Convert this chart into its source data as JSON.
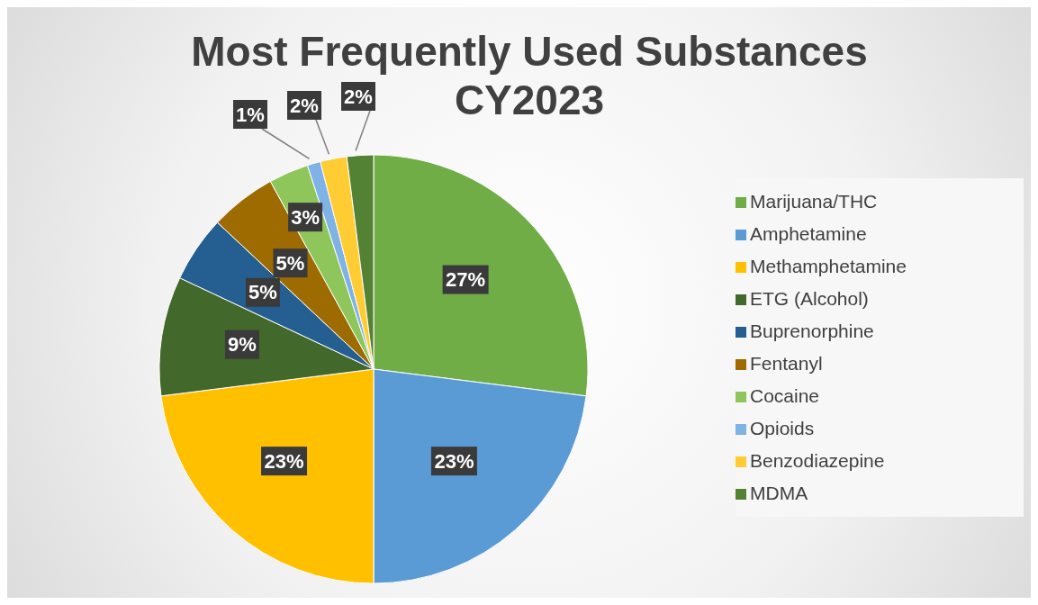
{
  "chart_data": {
    "type": "pie",
    "title": "Most Frequently Used Substances CY2023",
    "categories": [
      "Marijuana/THC",
      "Amphetamine",
      "Methamphetamine",
      "ETG (Alcohol)",
      "Buprenorphine",
      "Fentanyl",
      "Cocaine",
      "Opioids",
      "Benzodiazepine",
      "MDMA"
    ],
    "values": [
      27,
      23,
      23,
      9,
      5,
      5,
      3,
      1,
      2,
      2
    ],
    "value_labels": [
      "27%",
      "23%",
      "23%",
      "9%",
      "5%",
      "5%",
      "3%",
      "1%",
      "2%",
      "2%"
    ],
    "colors": [
      "#70ad47",
      "#5b9bd5",
      "#ffc000",
      "#43682b",
      "#255e91",
      "#9e6b00",
      "#8fc65c",
      "#7fb2e5",
      "#ffcd33",
      "#548235"
    ],
    "legend": "right"
  }
}
